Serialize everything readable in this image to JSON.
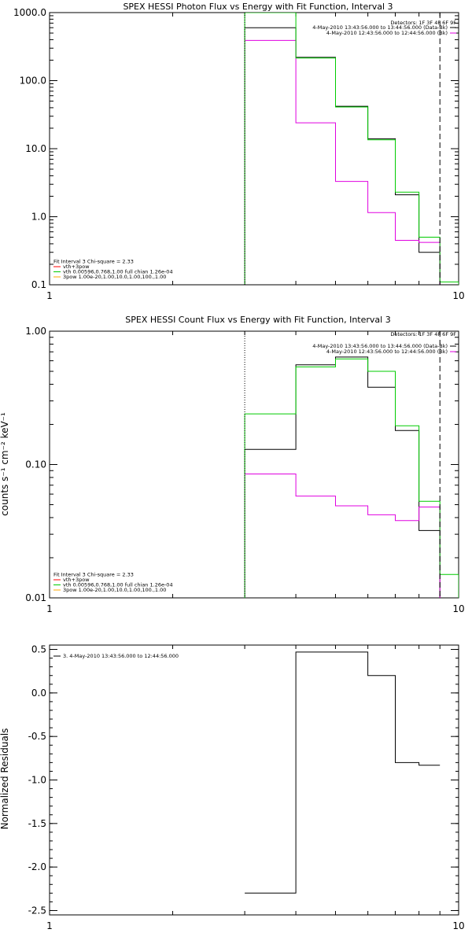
{
  "chart_data": [
    {
      "type": "line",
      "title": "SPEX HESSI Photon Flux vs Energy with Fit Function, Interval 3",
      "xlabel": "",
      "ylabel": "",
      "xscale": "log",
      "yscale": "log",
      "xlim": [
        1,
        10
      ],
      "ylim": [
        0.1,
        1000
      ],
      "x_ticks": [
        {
          "v": 1,
          "label": "1"
        },
        {
          "v": 10,
          "label": "10"
        }
      ],
      "y_ticks": [
        {
          "v": 0.1,
          "label": "0.1"
        },
        {
          "v": 1,
          "label": "1.0"
        },
        {
          "v": 10,
          "label": "10.0"
        },
        {
          "v": 100,
          "label": "100.0"
        },
        {
          "v": 1000,
          "label": "1000.0"
        }
      ],
      "vlines": [
        {
          "x": 3,
          "style": "dotted",
          "color": "#000000"
        },
        {
          "x": 9,
          "style": "dashed",
          "color": "#000000"
        }
      ],
      "detectors_text": "Detectors: 1F 3F 4F 6F 9F",
      "legend_right": [
        {
          "text": "4-May-2010 13:43:56.000 to 13:44:56.000 (Data-Bk)",
          "color": "#000000"
        },
        {
          "text": "4-May-2010 12:43:56.000 to 12:44:56.000 (Bk)",
          "color": "#e000e0"
        }
      ],
      "legend_left": [
        {
          "text": "Fit Interval 3   Chi-square = 2.33",
          "color": "#000000",
          "sample": false
        },
        {
          "text": "vth+3pow",
          "color": "#ff0000",
          "sample": true
        },
        {
          "text": "vth 0.00596,0.768,1.00  full chian 1.26e-04",
          "color": "#00cc00",
          "sample": true
        },
        {
          "text": "3pow 1.00e-20,1.00,10.0,1.00,100.,1.00",
          "color": "#ffaa00",
          "sample": true
        }
      ],
      "edges": [
        3,
        4,
        5,
        6,
        7,
        8,
        9,
        10
      ],
      "series": [
        {
          "name": "Data-Bk",
          "color": "#000000",
          "values": [
            600,
            220,
            42,
            14,
            2.1,
            0.3,
            null
          ]
        },
        {
          "name": "Bk",
          "color": "#e000e0",
          "values": [
            390,
            24,
            3.3,
            1.15,
            0.45,
            0.42,
            null
          ]
        },
        {
          "name": "vth+3pow",
          "color": "#00cc00",
          "values": [
            1500,
            215,
            41,
            13.5,
            2.3,
            0.5,
            0.11
          ]
        }
      ]
    },
    {
      "type": "line",
      "title": "SPEX HESSI Count Flux vs Energy with Fit Function, Interval 3",
      "xlabel": "",
      "ylabel": "counts s⁻¹ cm⁻² keV⁻¹",
      "xscale": "log",
      "yscale": "log",
      "xlim": [
        1,
        10
      ],
      "ylim": [
        0.01,
        1
      ],
      "x_ticks": [
        {
          "v": 1,
          "label": "1"
        },
        {
          "v": 10,
          "label": "10"
        }
      ],
      "y_ticks": [
        {
          "v": 0.01,
          "label": "0.01"
        },
        {
          "v": 0.1,
          "label": "0.10"
        },
        {
          "v": 1,
          "label": "1.00"
        }
      ],
      "vlines": [
        {
          "x": 3,
          "style": "dotted",
          "color": "#000000"
        },
        {
          "x": 9,
          "style": "dashed",
          "color": "#000000"
        }
      ],
      "detectors_text": "Detectors: 1F 3F 4F 6F 9F",
      "legend_right": [
        {
          "text": "4-May-2010 13:43:56.000 to 13:44:56.000 (Data-Bk)",
          "color": "#000000"
        },
        {
          "text": "4-May-2010 12:43:56.000 to 12:44:56.000 (Bk)",
          "color": "#e000e0"
        }
      ],
      "legend_left": [
        {
          "text": "Fit Interval 3   Chi-square = 2.33",
          "color": "#000000",
          "sample": false
        },
        {
          "text": "vth+3pow",
          "color": "#ff0000",
          "sample": true
        },
        {
          "text": "vth 0.00596,0.768,1.00  full chian 1.26e-04",
          "color": "#00cc00",
          "sample": true
        },
        {
          "text": "3pow 1.00e-20,1.00,10.0,1.00,100.,1.00",
          "color": "#ffaa00",
          "sample": true
        }
      ],
      "edges": [
        3,
        4,
        5,
        6,
        7,
        8,
        9,
        10
      ],
      "series": [
        {
          "name": "Data-Bk",
          "color": "#000000",
          "values": [
            0.13,
            0.56,
            0.64,
            0.38,
            0.18,
            0.032,
            null
          ]
        },
        {
          "name": "Bk",
          "color": "#e000e0",
          "values": [
            0.085,
            0.058,
            0.049,
            0.042,
            0.038,
            0.048,
            null
          ]
        },
        {
          "name": "vth+3pow",
          "color": "#00cc00",
          "values": [
            0.24,
            0.54,
            0.62,
            0.5,
            0.195,
            0.053,
            0.015
          ]
        }
      ]
    },
    {
      "type": "line",
      "title": "",
      "xlabel": "",
      "ylabel": "Normalized Residuals",
      "xscale": "log",
      "yscale": "linear",
      "xlim": [
        1,
        10
      ],
      "ylim": [
        -2.55,
        0.55
      ],
      "x_ticks": [
        {
          "v": 1,
          "label": "1"
        },
        {
          "v": 10,
          "label": "10"
        }
      ],
      "y_ticks": [
        {
          "v": 0.5,
          "label": "0.5"
        },
        {
          "v": 0,
          "label": "0.0"
        },
        {
          "v": -0.5,
          "label": "-0.5"
        },
        {
          "v": -1,
          "label": "-1.0"
        },
        {
          "v": -1.5,
          "label": "-1.5"
        },
        {
          "v": -2,
          "label": "-2.0"
        },
        {
          "v": -2.5,
          "label": "-2.5"
        }
      ],
      "vlines": [],
      "legend_left": [
        {
          "text": "3.  4-May-2010 13:43:56.000 to 12:44:56.000",
          "color": "#000000",
          "sample": true
        }
      ],
      "edges": [
        3,
        4,
        5,
        6,
        7,
        8,
        9
      ],
      "series": [
        {
          "name": "",
          "color": "#000000",
          "values": [
            -2.3,
            0.47,
            0.47,
            0.2,
            -0.8,
            -0.83
          ]
        }
      ]
    }
  ]
}
